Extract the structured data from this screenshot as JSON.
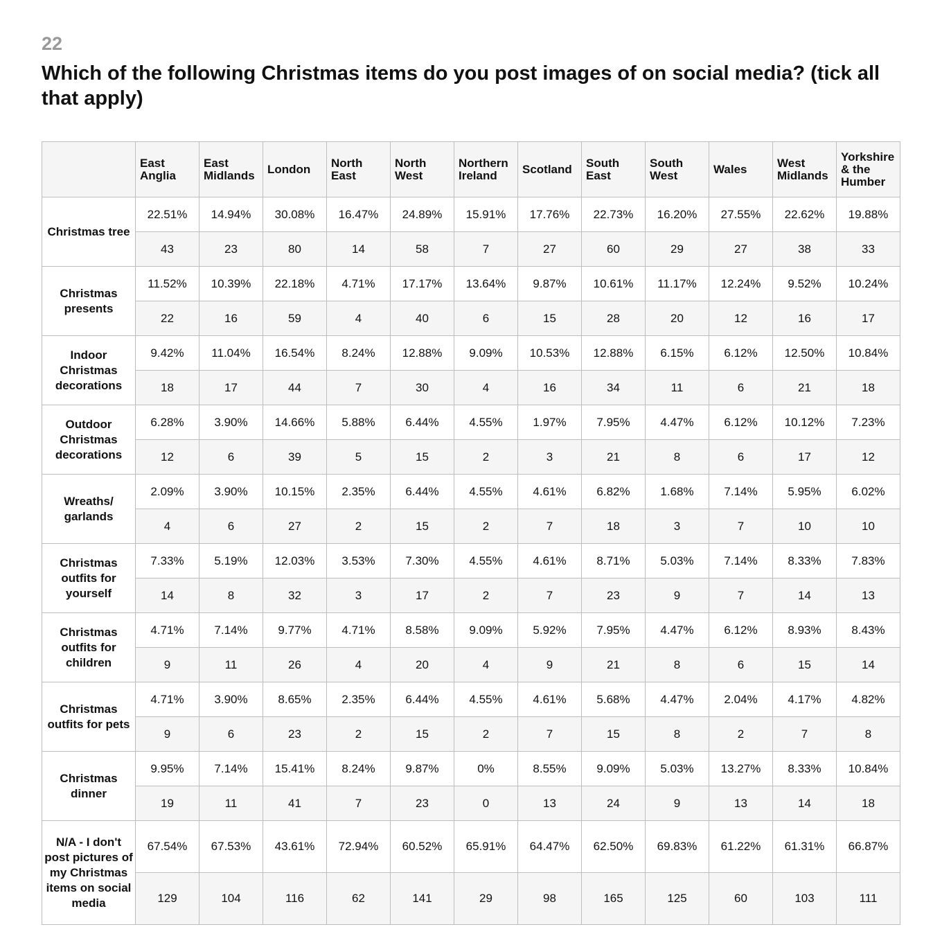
{
  "question": {
    "number": "22",
    "title": "Which of the following Christmas items do you post images of on social media? (tick all that apply)"
  },
  "table": {
    "columns": [
      "East Anglia",
      "East Midlands",
      "London",
      "North East",
      "North West",
      "Northern Ireland",
      "Scotland",
      "South East",
      "South West",
      "Wales",
      "West Midlands",
      "Yorkshire & the Humber"
    ],
    "rows": [
      {
        "label": "Christmas tree",
        "pct": [
          "22.51%",
          "14.94%",
          "30.08%",
          "16.47%",
          "24.89%",
          "15.91%",
          "17.76%",
          "22.73%",
          "16.20%",
          "27.55%",
          "22.62%",
          "19.88%"
        ],
        "count": [
          "43",
          "23",
          "80",
          "14",
          "58",
          "7",
          "27",
          "60",
          "29",
          "27",
          "38",
          "33"
        ]
      },
      {
        "label": "Christmas presents",
        "pct": [
          "11.52%",
          "10.39%",
          "22.18%",
          "4.71%",
          "17.17%",
          "13.64%",
          "9.87%",
          "10.61%",
          "11.17%",
          "12.24%",
          "9.52%",
          "10.24%"
        ],
        "count": [
          "22",
          "16",
          "59",
          "4",
          "40",
          "6",
          "15",
          "28",
          "20",
          "12",
          "16",
          "17"
        ]
      },
      {
        "label": "Indoor Christmas decorations",
        "pct": [
          "9.42%",
          "11.04%",
          "16.54%",
          "8.24%",
          "12.88%",
          "9.09%",
          "10.53%",
          "12.88%",
          "6.15%",
          "6.12%",
          "12.50%",
          "10.84%"
        ],
        "count": [
          "18",
          "17",
          "44",
          "7",
          "30",
          "4",
          "16",
          "34",
          "11",
          "6",
          "21",
          "18"
        ]
      },
      {
        "label": "Outdoor Christmas decorations",
        "pct": [
          "6.28%",
          "3.90%",
          "14.66%",
          "5.88%",
          "6.44%",
          "4.55%",
          "1.97%",
          "7.95%",
          "4.47%",
          "6.12%",
          "10.12%",
          "7.23%"
        ],
        "count": [
          "12",
          "6",
          "39",
          "5",
          "15",
          "2",
          "3",
          "21",
          "8",
          "6",
          "17",
          "12"
        ]
      },
      {
        "label": "Wreaths/ garlands",
        "pct": [
          "2.09%",
          "3.90%",
          "10.15%",
          "2.35%",
          "6.44%",
          "4.55%",
          "4.61%",
          "6.82%",
          "1.68%",
          "7.14%",
          "5.95%",
          "6.02%"
        ],
        "count": [
          "4",
          "6",
          "27",
          "2",
          "15",
          "2",
          "7",
          "18",
          "3",
          "7",
          "10",
          "10"
        ]
      },
      {
        "label": "Christmas outfits for yourself",
        "pct": [
          "7.33%",
          "5.19%",
          "12.03%",
          "3.53%",
          "7.30%",
          "4.55%",
          "4.61%",
          "8.71%",
          "5.03%",
          "7.14%",
          "8.33%",
          "7.83%"
        ],
        "count": [
          "14",
          "8",
          "32",
          "3",
          "17",
          "2",
          "7",
          "23",
          "9",
          "7",
          "14",
          "13"
        ]
      },
      {
        "label": "Christmas outfits for children",
        "pct": [
          "4.71%",
          "7.14%",
          "9.77%",
          "4.71%",
          "8.58%",
          "9.09%",
          "5.92%",
          "7.95%",
          "4.47%",
          "6.12%",
          "8.93%",
          "8.43%"
        ],
        "count": [
          "9",
          "11",
          "26",
          "4",
          "20",
          "4",
          "9",
          "21",
          "8",
          "6",
          "15",
          "14"
        ]
      },
      {
        "label": "Christmas outfits for pets",
        "pct": [
          "4.71%",
          "3.90%",
          "8.65%",
          "2.35%",
          "6.44%",
          "4.55%",
          "4.61%",
          "5.68%",
          "4.47%",
          "2.04%",
          "4.17%",
          "4.82%"
        ],
        "count": [
          "9",
          "6",
          "23",
          "2",
          "15",
          "2",
          "7",
          "15",
          "8",
          "2",
          "7",
          "8"
        ]
      },
      {
        "label": "Christmas dinner",
        "pct": [
          "9.95%",
          "7.14%",
          "15.41%",
          "8.24%",
          "9.87%",
          "0%",
          "8.55%",
          "9.09%",
          "5.03%",
          "13.27%",
          "8.33%",
          "10.84%"
        ],
        "count": [
          "19",
          "11",
          "41",
          "7",
          "23",
          "0",
          "13",
          "24",
          "9",
          "13",
          "14",
          "18"
        ]
      },
      {
        "label": "N/A - I don't post pictures of my Christmas items on social media",
        "pct": [
          "67.54%",
          "67.53%",
          "43.61%",
          "72.94%",
          "60.52%",
          "65.91%",
          "64.47%",
          "62.50%",
          "69.83%",
          "61.22%",
          "61.31%",
          "66.87%"
        ],
        "count": [
          "129",
          "104",
          "116",
          "62",
          "141",
          "29",
          "98",
          "165",
          "125",
          "60",
          "103",
          "111"
        ]
      }
    ]
  }
}
